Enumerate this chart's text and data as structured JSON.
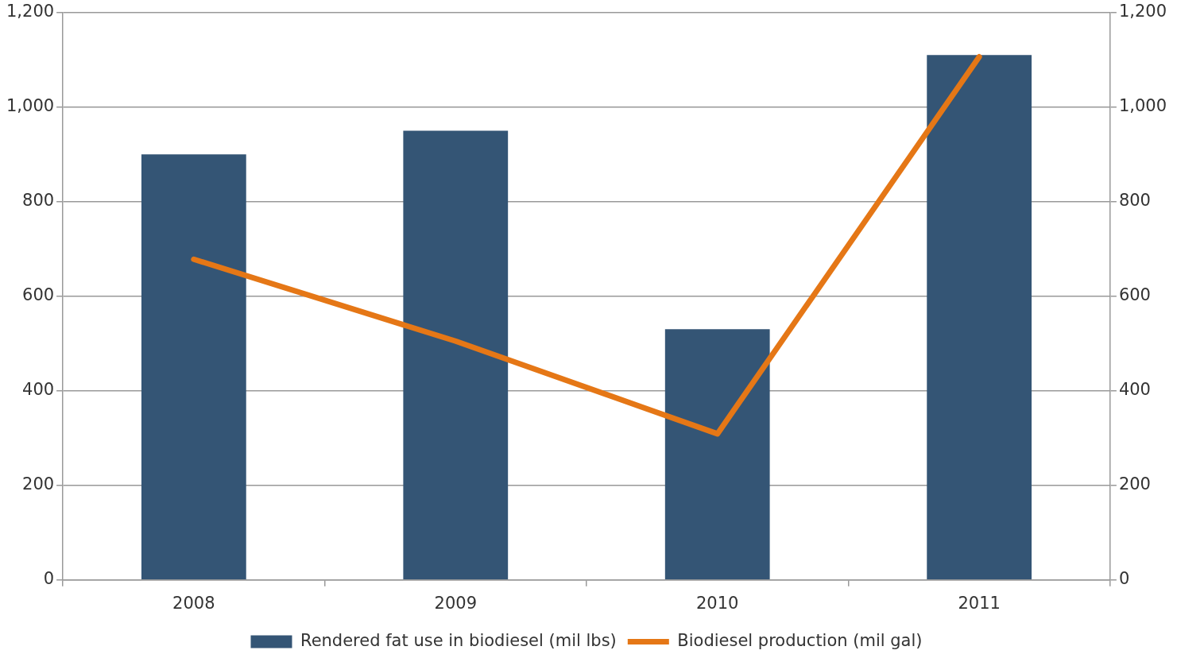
{
  "chart_data": {
    "type": "bar",
    "categories": [
      "2008",
      "2009",
      "2010",
      "2011"
    ],
    "series": [
      {
        "name": "Rendered fat use in biodiesel (mil lbs)",
        "color": "#345575",
        "values": [
          900,
          950,
          530,
          1110
        ]
      },
      {
        "name": "Biodiesel production (mil gal)",
        "color": "#e57716",
        "type": "line",
        "axis": "y2",
        "values": [
          678,
          505,
          309,
          1106
        ]
      }
    ],
    "ylim": [
      0,
      1200
    ],
    "yticks": [
      {
        "value": 0,
        "label": "0"
      },
      {
        "value": 200,
        "label": "200"
      },
      {
        "value": 400,
        "label": "400"
      },
      {
        "value": 600,
        "label": "600"
      },
      {
        "value": 800,
        "label": "800"
      },
      {
        "value": 1000,
        "label": "1,000"
      },
      {
        "value": 1200,
        "label": "1,200"
      }
    ],
    "y2lim": [
      0,
      1200
    ],
    "y2ticks": [
      {
        "value": 0,
        "label": "0"
      },
      {
        "value": 200,
        "label": "200"
      },
      {
        "value": 400,
        "label": "400"
      },
      {
        "value": 600,
        "label": "600"
      },
      {
        "value": 800,
        "label": "800"
      },
      {
        "value": 1000,
        "label": "1,000"
      },
      {
        "value": 1200,
        "label": "1,200"
      }
    ],
    "grid": "y",
    "legend": "bottom",
    "marker": "none"
  }
}
